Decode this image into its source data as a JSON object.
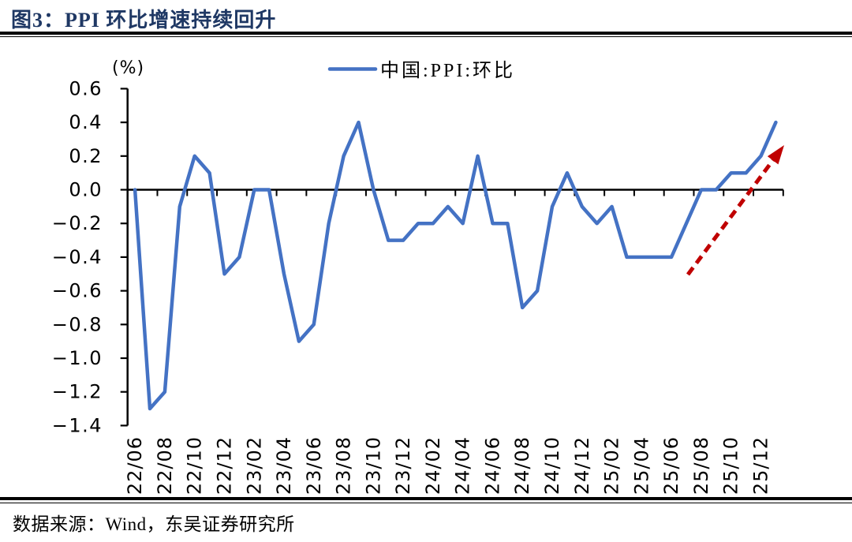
{
  "title": "图3：PPI 环比增速持续回升",
  "source": "数据来源：Wind，东吴证券研究所",
  "chart_data": {
    "type": "line",
    "title": "图3：PPI 环比增速持续回升",
    "legend": "中国:PPI:环比",
    "unit_label": "(%)",
    "series_color": "#4472C4",
    "arrow_color": "#C00000",
    "axis_color": "#000000",
    "ylim": [
      -1.4,
      0.6
    ],
    "y_tick_step": 0.2,
    "grid": "off",
    "legend_position": "top-center",
    "y_ticks": [
      "0.6",
      "0.4",
      "0.2",
      "0.0",
      "−0.2",
      "−0.4",
      "−0.6",
      "−0.8",
      "−1.0",
      "−1.2",
      "−1.4"
    ],
    "x_tick_labels": [
      "22/06",
      "22/08",
      "22/10",
      "22/12",
      "23/02",
      "23/04",
      "23/06",
      "23/08",
      "23/10",
      "23/12",
      "24/02",
      "24/04",
      "24/06",
      "24/08",
      "24/10",
      "24/12",
      "25/02",
      "25/04",
      "25/06",
      "25/08",
      "25/10",
      "25/12"
    ],
    "categories": [
      "22/06",
      "22/07",
      "22/08",
      "22/09",
      "22/10",
      "22/11",
      "22/12",
      "23/01",
      "23/02",
      "23/03",
      "23/04",
      "23/05",
      "23/06",
      "23/07",
      "23/08",
      "23/09",
      "23/10",
      "23/11",
      "23/12",
      "24/01",
      "24/02",
      "24/03",
      "24/04",
      "24/05",
      "24/06",
      "24/07",
      "24/08",
      "24/09",
      "24/10",
      "24/11",
      "24/12",
      "25/01",
      "25/02",
      "25/03",
      "25/04",
      "25/05",
      "25/06",
      "25/07",
      "25/08",
      "25/09",
      "25/10",
      "25/11",
      "25/12",
      "26/01"
    ],
    "values": [
      0.0,
      -1.3,
      -1.2,
      -0.1,
      0.2,
      0.1,
      -0.5,
      -0.4,
      0.0,
      0.0,
      -0.5,
      -0.9,
      -0.8,
      -0.2,
      0.2,
      0.4,
      0.0,
      -0.3,
      -0.3,
      -0.2,
      -0.2,
      -0.1,
      -0.2,
      0.2,
      -0.2,
      -0.2,
      -0.7,
      -0.6,
      -0.1,
      0.1,
      -0.1,
      -0.2,
      -0.1,
      -0.4,
      -0.4,
      -0.4,
      -0.4,
      -0.2,
      0.0,
      0.0,
      0.1,
      0.1,
      0.2,
      0.4
    ],
    "annotation_arrow": {
      "from": [
        872,
        348
      ],
      "to": [
        994,
        184
      ]
    }
  }
}
